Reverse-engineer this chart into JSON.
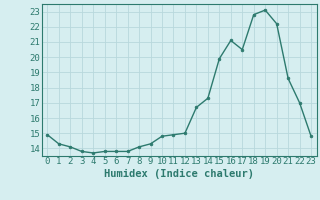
{
  "x": [
    0,
    1,
    2,
    3,
    4,
    5,
    6,
    7,
    8,
    9,
    10,
    11,
    12,
    13,
    14,
    15,
    16,
    17,
    18,
    19,
    20,
    21,
    22,
    23
  ],
  "y": [
    14.9,
    14.3,
    14.1,
    13.8,
    13.7,
    13.8,
    13.8,
    13.8,
    14.1,
    14.3,
    14.8,
    14.9,
    15.0,
    16.7,
    17.3,
    19.9,
    21.1,
    20.5,
    22.8,
    23.1,
    22.2,
    18.6,
    17.0,
    14.8
  ],
  "line_color": "#2d7a6e",
  "marker_color": "#2d7a6e",
  "bg_color": "#d6eef0",
  "grid_color": "#b8d8dc",
  "xlabel": "Humidex (Indice chaleur)",
  "ylim": [
    13.5,
    23.5
  ],
  "xlim": [
    -0.5,
    23.5
  ],
  "yticks": [
    14,
    15,
    16,
    17,
    18,
    19,
    20,
    21,
    22,
    23
  ],
  "xticks": [
    0,
    1,
    2,
    3,
    4,
    5,
    6,
    7,
    8,
    9,
    10,
    11,
    12,
    13,
    14,
    15,
    16,
    17,
    18,
    19,
    20,
    21,
    22,
    23
  ],
  "tick_color": "#2d7a6e",
  "label_color": "#2d7a6e",
  "font_size": 6.5,
  "label_font_size": 7.5
}
